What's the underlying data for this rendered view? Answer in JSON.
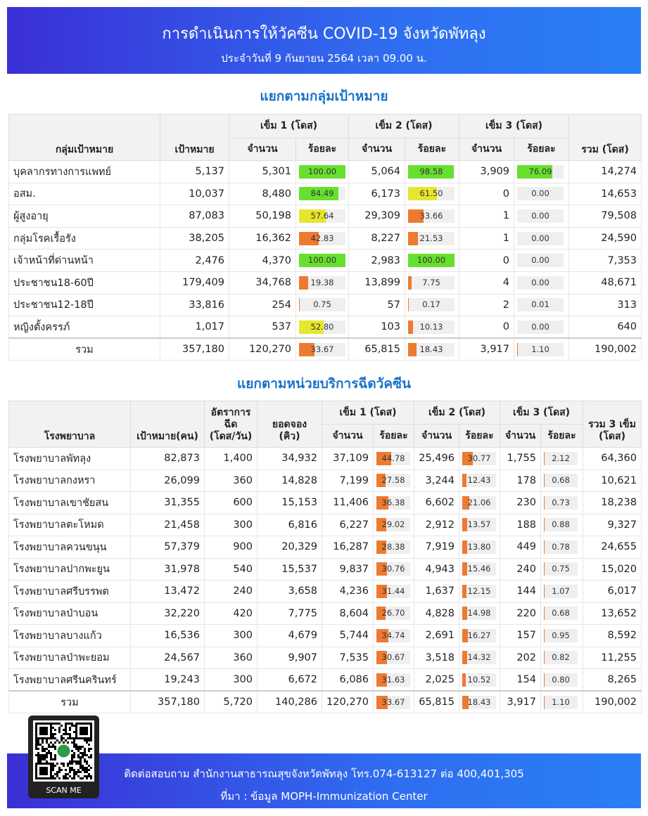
{
  "header": {
    "title": "การดำเนินการให้วัคซีน COVID-19 จังหวัดพัทลุง",
    "subtitle": "ประจำวันที่ 9 กันยายน 2564 เวลา 09.00 น."
  },
  "table1": {
    "title": "แยกตามกลุ่มเป้าหมาย",
    "headers": {
      "group": "กลุ่มเป้าหมาย",
      "target": "เป้าหมาย",
      "dose1": "เข็ม 1 (โดส)",
      "dose2": "เข็ม 2 (โดส)",
      "dose3": "เข็ม 3 (โดส)",
      "count": "จำนวน",
      "percent": "ร้อยละ",
      "total": "รวม (โดส)"
    },
    "rows": [
      [
        "บุคลากรทางการแพทย์",
        "5,137",
        "5,301",
        "100.00",
        "5,064",
        "98.58",
        "3,909",
        "76.09",
        "14,274"
      ],
      [
        "อสม.",
        "10,037",
        "8,480",
        "84.49",
        "6,173",
        "61.50",
        "0",
        "0.00",
        "14,653"
      ],
      [
        "ผู้สูงอายุ",
        "87,083",
        "50,198",
        "57.64",
        "29,309",
        "33.66",
        "1",
        "0.00",
        "79,508"
      ],
      [
        "กลุ่มโรคเรื้อรัง",
        "38,205",
        "16,362",
        "42.83",
        "8,227",
        "21.53",
        "1",
        "0.00",
        "24,590"
      ],
      [
        "เจ้าหน้าที่ด่านหน้า",
        "2,476",
        "4,370",
        "100.00",
        "2,983",
        "100.00",
        "0",
        "0.00",
        "7,353"
      ],
      [
        "ประชาชน18-60ปี",
        "179,409",
        "34,768",
        "19.38",
        "13,899",
        "7.75",
        "4",
        "0.00",
        "48,671"
      ],
      [
        "ประชาชน12-18ปี",
        "33,816",
        "254",
        "0.75",
        "57",
        "0.17",
        "2",
        "0.01",
        "313"
      ],
      [
        "หญิงตั้งครรภ์",
        "1,017",
        "537",
        "52.80",
        "103",
        "10.13",
        "0",
        "0.00",
        "640"
      ],
      [
        "รวม",
        "357,180",
        "120,270",
        "33.67",
        "65,815",
        "18.43",
        "3,917",
        "1.10",
        "190,002"
      ]
    ]
  },
  "table2": {
    "title": "แยกตามหน่วยบริการฉีดวัคซีน",
    "headers": {
      "hospital": "โรงพยาบาล",
      "target": "เป้าหมาย(คน)",
      "rate": "อัตราการฉีด\n(โดส/วัน)",
      "booking": "ยอดจอง\n(คิว)",
      "dose1": "เข็ม 1 (โดส)",
      "dose2": "เข็ม 2 (โดส)",
      "dose3": "เข็ม 3 (โดส)",
      "count": "จำนวน",
      "percent": "ร้อยละ",
      "total": "รวม 3 เข็ม\n(โดส)"
    },
    "rows": [
      [
        "โรงพยาบาลพัทลุง",
        "82,873",
        "1,400",
        "34,932",
        "37,109",
        "44.78",
        "25,496",
        "30.77",
        "1,755",
        "2.12",
        "64,360"
      ],
      [
        "โรงพยาบาลกงหรา",
        "26,099",
        "360",
        "14,828",
        "7,199",
        "27.58",
        "3,244",
        "12.43",
        "178",
        "0.68",
        "10,621"
      ],
      [
        "โรงพยาบาลเขาชัยสน",
        "31,355",
        "600",
        "15,153",
        "11,406",
        "36.38",
        "6,602",
        "21.06",
        "230",
        "0.73",
        "18,238"
      ],
      [
        "โรงพยาบาลตะโหมด",
        "21,458",
        "300",
        "6,816",
        "6,227",
        "29.02",
        "2,912",
        "13.57",
        "188",
        "0.88",
        "9,327"
      ],
      [
        "โรงพยาบาลควนขนุน",
        "57,379",
        "900",
        "20,329",
        "16,287",
        "28.38",
        "7,919",
        "13.80",
        "449",
        "0.78",
        "24,655"
      ],
      [
        "โรงพยาบาลปากพะยูน",
        "31,978",
        "540",
        "15,537",
        "9,837",
        "30.76",
        "4,943",
        "15.46",
        "240",
        "0.75",
        "15,020"
      ],
      [
        "โรงพยาบาลศรีบรรพต",
        "13,472",
        "240",
        "3,658",
        "4,236",
        "31.44",
        "1,637",
        "12.15",
        "144",
        "1.07",
        "6,017"
      ],
      [
        "โรงพยาบาลป่าบอน",
        "32,220",
        "420",
        "7,775",
        "8,604",
        "26.70",
        "4,828",
        "14.98",
        "220",
        "0.68",
        "13,652"
      ],
      [
        "โรงพยาบาลบางแก้ว",
        "16,536",
        "300",
        "4,679",
        "5,744",
        "34.74",
        "2,691",
        "16.27",
        "157",
        "0.95",
        "8,592"
      ],
      [
        "โรงพยาบาลป่าพะยอม",
        "24,567",
        "360",
        "9,907",
        "7,535",
        "30.67",
        "3,518",
        "14.32",
        "202",
        "0.82",
        "11,255"
      ],
      [
        "โรงพยาบาลศรีนครินทร์",
        "19,243",
        "300",
        "6,672",
        "6,086",
        "31.63",
        "2,025",
        "10.52",
        "154",
        "0.80",
        "8,265"
      ],
      [
        "รวม",
        "357,180",
        "5,720",
        "140,286",
        "120,270",
        "33.67",
        "65,815",
        "18.43",
        "3,917",
        "1.10",
        "190,002"
      ]
    ]
  },
  "footer": {
    "contact": "ติดต่อสอบถาม สำนักงานสาธารณสุขจังหวัดพัทลุง โทร.074-613127 ต่อ 400,401,305",
    "source": "ที่มา : ข้อมูล MOPH-Immunization Center",
    "qr_label": "SCAN ME"
  }
}
